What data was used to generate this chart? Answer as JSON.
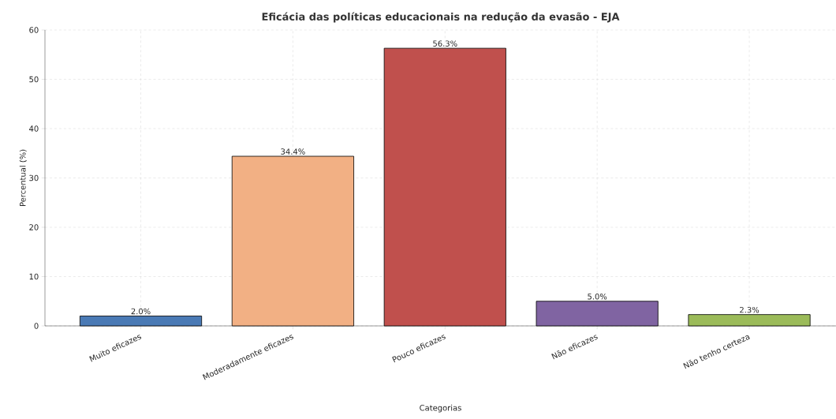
{
  "chart_data": {
    "type": "bar",
    "title": "Eficácia das políticas educacionais na redução da evasão - EJA",
    "xlabel": "Categorias",
    "ylabel": "Percentual (%)",
    "categories": [
      "Muito eficazes",
      "Moderadamente eficazes",
      "Pouco eficazes",
      "Não eficazes",
      "Não tenho certeza"
    ],
    "values": [
      2.0,
      34.4,
      56.3,
      5.0,
      2.3
    ],
    "colors": [
      "#4a7ab5",
      "#f2b084",
      "#c0504d",
      "#8064a2",
      "#9bbb59"
    ],
    "value_labels": [
      "2.0%",
      "34.4%",
      "56.3%",
      "5.0%",
      "2.3%"
    ],
    "ylim": [
      0,
      60
    ],
    "yticks": [
      0,
      10,
      20,
      30,
      40,
      50,
      60
    ],
    "grid": true
  }
}
